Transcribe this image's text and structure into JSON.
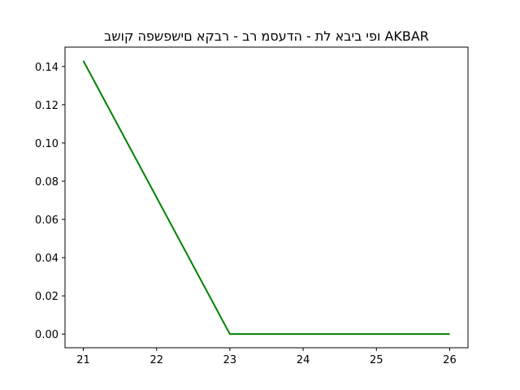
{
  "chart_data": {
    "type": "line",
    "title": "ופי ביבא לת - הדעסמ רב - רבקא םישפשפה קושב AKBAR",
    "xlabel": "",
    "ylabel": "",
    "x": [
      21,
      22,
      23,
      24,
      25,
      26
    ],
    "series": [
      {
        "values": [
          0.143,
          0.0715,
          0.0,
          0.0,
          0.0,
          0.0
        ],
        "color": "#008000"
      }
    ],
    "xlim": [
      20.75,
      26.25
    ],
    "ylim": [
      -0.00715,
      0.15015
    ],
    "xticks": [
      21,
      22,
      23,
      24,
      25,
      26
    ],
    "xtick_labels": [
      "21",
      "22",
      "23",
      "24",
      "25",
      "26"
    ],
    "yticks": [
      0.0,
      0.02,
      0.04,
      0.06,
      0.08,
      0.1,
      0.12,
      0.14
    ],
    "ytick_labels": [
      "0.00",
      "0.02",
      "0.04",
      "0.06",
      "0.08",
      "0.10",
      "0.12",
      "0.14"
    ],
    "grid": false,
    "legend": false
  }
}
